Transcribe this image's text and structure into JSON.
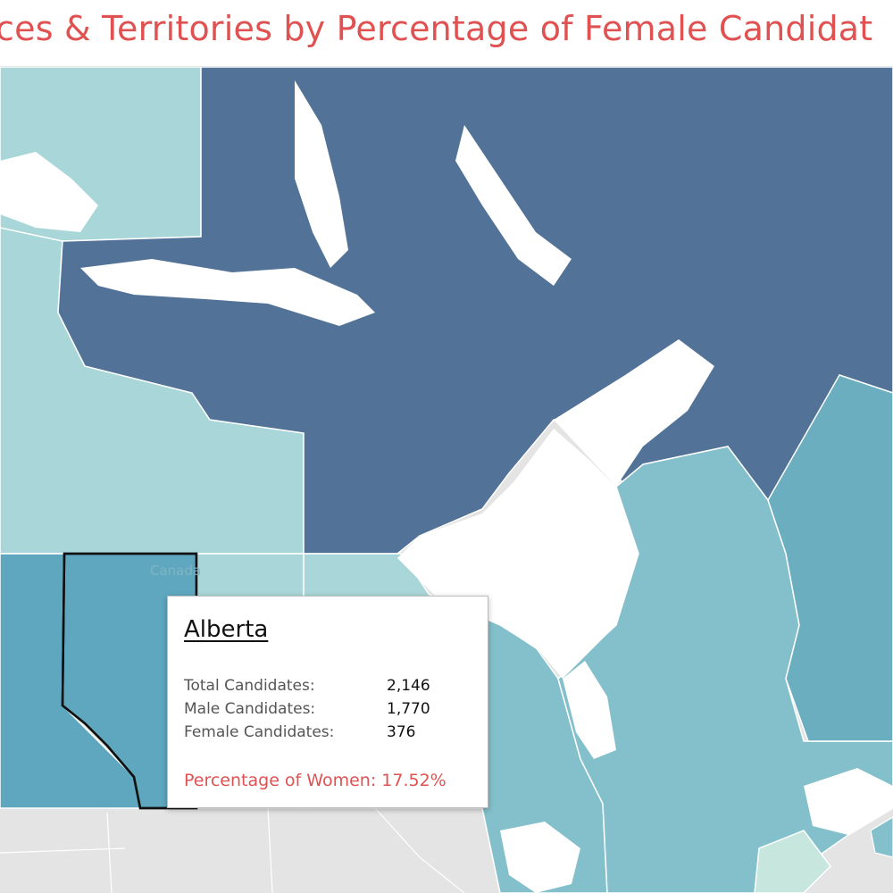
{
  "title": "inces & Territories by Percentage of Female Candidat",
  "colors": {
    "title": "#e05252",
    "darkest": "#527397",
    "dark": "#5fa7bf",
    "medium": "#83c0cb",
    "light": "#a9d6d8",
    "palest": "#c7e6de",
    "basemap": "#e4e4e4"
  },
  "map": {
    "country_label": "Canada",
    "highlighted_region": "Alberta"
  },
  "tooltip": {
    "title": "Alberta",
    "rows": [
      {
        "label": "Total Candidates:",
        "value": "2,146"
      },
      {
        "label": "Male Candidates:",
        "value": "1,770"
      },
      {
        "label": "Female Candidates:",
        "value": "376"
      }
    ],
    "percentage_label": "Percentage of Women:",
    "percentage_value": "17.52%"
  }
}
